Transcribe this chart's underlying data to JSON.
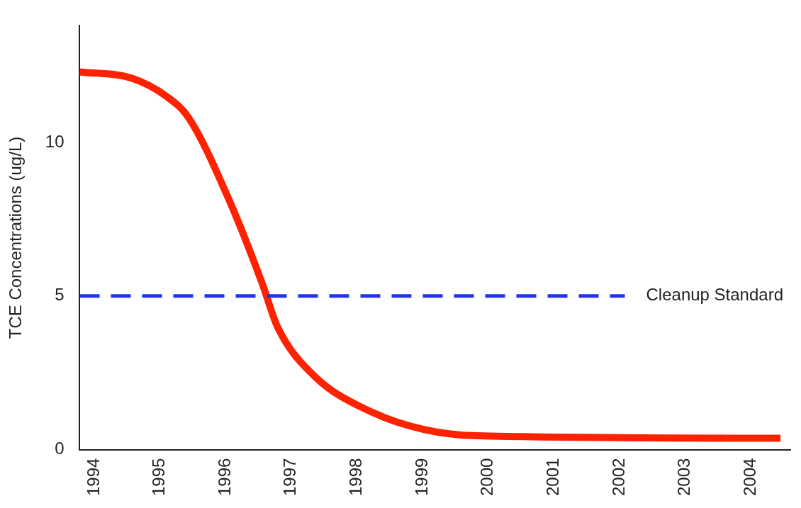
{
  "chart_data": {
    "type": "line",
    "ylabel": "TCE Concentrations (ug/L)",
    "x": [
      1993.78,
      1994.56,
      1995.1,
      1995.44,
      1996.06,
      1996.56,
      1996.79,
      1997.35,
      1998.25,
      1999.03,
      1999.82,
      2004.45
    ],
    "series": [
      {
        "color": "#ff2200",
        "values": [
          12.3,
          12.1,
          11.5,
          10.8,
          8.1,
          5.4,
          4.0,
          2.4,
          1.2,
          0.65,
          0.45,
          0.37
        ]
      }
    ],
    "xlim": [
      1993.78,
      2004.6
    ],
    "xticks": [
      1994,
      1995,
      1996,
      1997,
      1998,
      1999,
      2000,
      2001,
      2002,
      2003,
      2004
    ],
    "ylim": [
      0,
      13.8
    ],
    "yticks": [
      0,
      5,
      10
    ],
    "ref_lines": [
      {
        "axis": "y",
        "value": 5,
        "label": "Cleanup Standard",
        "color": "#2233ee",
        "line_style": "dashed"
      }
    ],
    "grid": false,
    "legend": false,
    "marker": "none",
    "line_style": "solid"
  }
}
